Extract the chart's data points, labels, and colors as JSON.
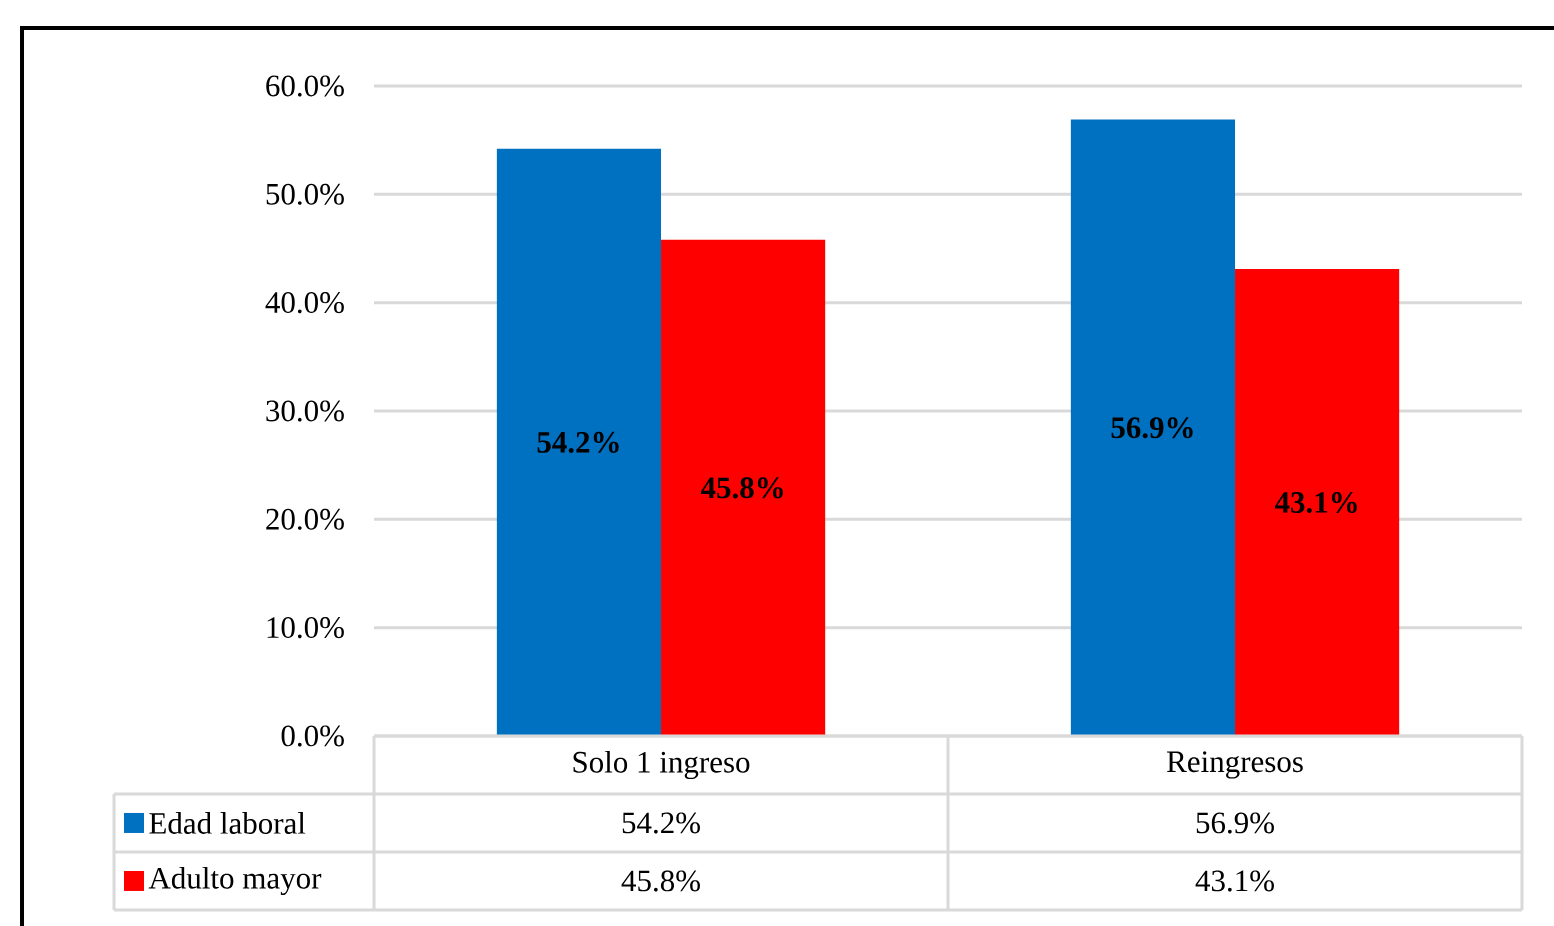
{
  "chart_data": {
    "type": "bar",
    "categories": [
      "Solo 1 ingreso",
      "Reingresos"
    ],
    "series": [
      {
        "name": "Edad laboral",
        "color": "#0070c0",
        "values": [
          54.2,
          56.9
        ],
        "value_labels": [
          "54.2%",
          "56.9%"
        ]
      },
      {
        "name": "Adulto mayor",
        "color": "#ff0000",
        "values": [
          45.8,
          43.1
        ],
        "value_labels": [
          "45.8%",
          "43.1%"
        ]
      }
    ],
    "ylim": [
      0,
      60
    ],
    "yticks": [
      {
        "value": 0,
        "label": "0.0%"
      },
      {
        "value": 10,
        "label": "10.0%"
      },
      {
        "value": 20,
        "label": "20.0%"
      },
      {
        "value": 30,
        "label": "30.0%"
      },
      {
        "value": 40,
        "label": "40.0%"
      },
      {
        "value": 50,
        "label": "50.0%"
      },
      {
        "value": 60,
        "label": "60.0%"
      }
    ],
    "grid": "y",
    "legend": "bottom"
  }
}
